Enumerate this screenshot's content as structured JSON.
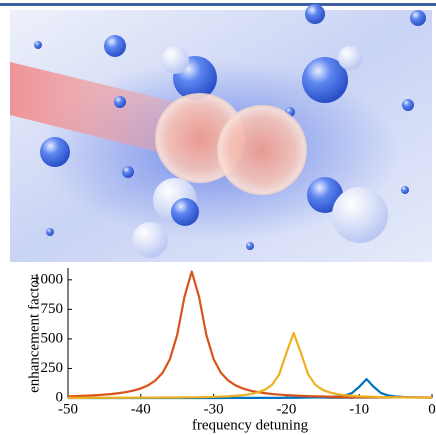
{
  "chart_data": {
    "type": "line",
    "x_label": "frequency detuning",
    "y_label": "enhancement factor",
    "x": [
      -50,
      -49,
      -48,
      -47,
      -46,
      -45,
      -44,
      -43,
      -42,
      -41,
      -40,
      -39,
      -38,
      -37,
      -36,
      -35,
      -34,
      -33,
      -32,
      -31,
      -30,
      -29,
      -28,
      -27,
      -26,
      -25,
      -24,
      -23,
      -22,
      -21,
      -20,
      -19,
      -18,
      -17,
      -16,
      -15,
      -14,
      -13,
      -12,
      -11,
      -10,
      -9,
      -8,
      -7,
      -6,
      -5,
      -4,
      -3,
      -2,
      -1,
      0
    ],
    "series": [
      {
        "color": "#0072bd",
        "values": [
          0,
          0,
          0,
          0,
          0,
          0,
          0,
          0,
          0,
          0,
          0,
          0,
          0,
          0,
          0,
          0,
          0,
          0,
          0,
          0,
          0,
          0,
          1,
          1,
          1,
          1,
          1,
          1,
          1,
          1,
          2,
          2,
          3,
          4,
          5,
          6,
          9,
          13,
          21,
          42,
          94,
          160,
          94,
          42,
          21,
          13,
          9,
          6,
          5,
          4,
          3
        ]
      },
      {
        "color": "#d95319",
        "values": [
          14,
          16,
          18,
          21,
          24,
          29,
          34,
          41,
          50,
          63,
          81,
          107,
          148,
          214,
          329,
          535,
          856,
          1070,
          856,
          535,
          329,
          214,
          148,
          107,
          81,
          63,
          50,
          41,
          34,
          29,
          24,
          21,
          18,
          16,
          14,
          13,
          11,
          10,
          9,
          8,
          7,
          7,
          6,
          6,
          6,
          5,
          5,
          5,
          4,
          4,
          4
        ]
      },
      {
        "color": "#edb120",
        "values": [
          1,
          1,
          1,
          2,
          2,
          2,
          2,
          2,
          2,
          3,
          3,
          3,
          3,
          4,
          4,
          4,
          5,
          6,
          7,
          8,
          10,
          12,
          14,
          19,
          24,
          32,
          46,
          68,
          110,
          198,
          381,
          550,
          381,
          198,
          110,
          68,
          46,
          32,
          24,
          19,
          14,
          12,
          10,
          8,
          7,
          6,
          5,
          4,
          4,
          4,
          3
        ]
      }
    ],
    "xlim": [
      -50,
      0
    ],
    "xticks": [
      -50,
      -40,
      -30,
      -20,
      -10,
      0
    ],
    "ylim": [
      0,
      1100
    ],
    "yticks": [
      0,
      250,
      500,
      750,
      1000
    ]
  }
}
